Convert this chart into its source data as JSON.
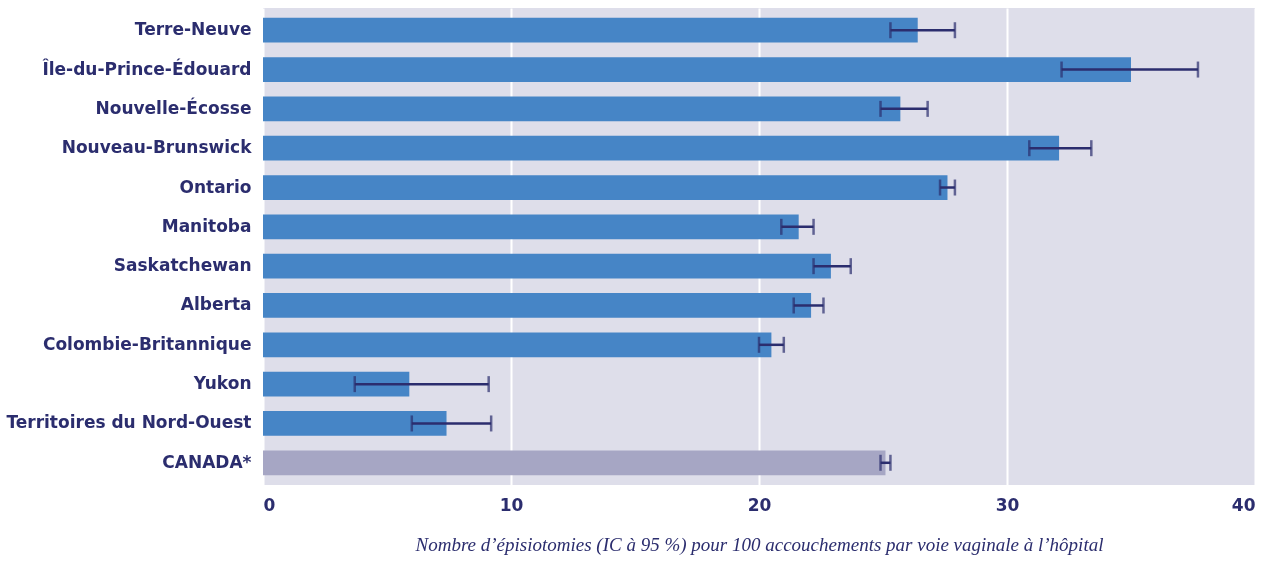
{
  "chart_data": {
    "type": "bar",
    "orientation": "horizontal",
    "xlabel": "Nombre d’épisiotomies (IC à 95 %) pour 100 accouchements par voie vaginale à l’hôpital",
    "categories": [
      "Terre-Neuve",
      "Île-du-Prince-Édouard",
      "Nouvelle-Écosse",
      "Nouveau-Brunswick",
      "Ontario",
      "Manitoba",
      "Saskatchewan",
      "Alberta",
      "Colombie-Britannique",
      "Yukon",
      "Territoires du Nord-Ouest",
      "CANADA*"
    ],
    "values": [
      26.4,
      35.0,
      25.7,
      32.1,
      27.6,
      21.6,
      22.9,
      22.1,
      20.5,
      5.9,
      7.4,
      25.1
    ],
    "colors": [
      "#4685c6",
      "#4685c6",
      "#4685c6",
      "#4685c6",
      "#4685c6",
      "#4685c6",
      "#4685c6",
      "#4685c6",
      "#4685c6",
      "#4685c6",
      "#4685c6",
      "#a6a6c4"
    ],
    "errors": [
      [
        25.3,
        27.9
      ],
      [
        32.2,
        37.7
      ],
      [
        24.9,
        26.8
      ],
      [
        30.9,
        33.4
      ],
      [
        27.3,
        27.9
      ],
      [
        20.9,
        22.2
      ],
      [
        22.2,
        23.7
      ],
      [
        21.4,
        22.6
      ],
      [
        20.0,
        21.0
      ],
      [
        3.7,
        9.1
      ],
      [
        6.0,
        9.2
      ],
      [
        24.9,
        25.3
      ]
    ],
    "xlim": [
      0,
      40
    ],
    "xticks": [
      0,
      10,
      20,
      30,
      40
    ],
    "grid": "x"
  }
}
